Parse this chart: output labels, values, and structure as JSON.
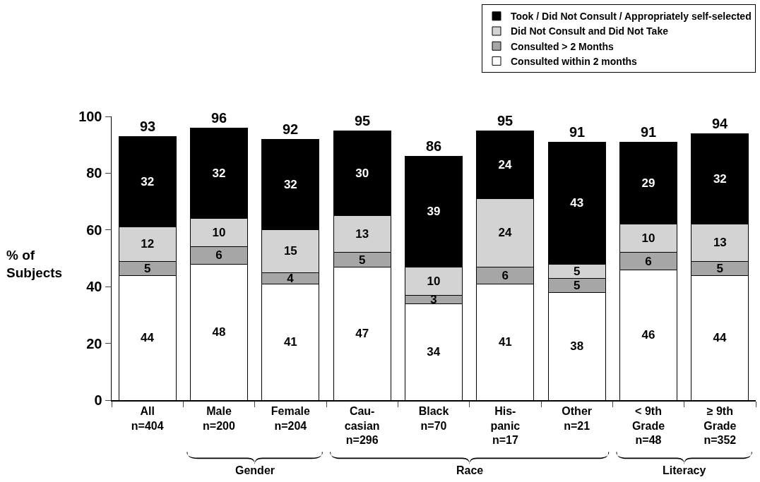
{
  "chart_data": {
    "type": "bar",
    "stacked": true,
    "ylabel": "% of\nSubjects",
    "categories": [
      "All\nn=404",
      "Male\nn=200",
      "Female\nn=204",
      "Cau-\ncasian\nn=296",
      "Black\nn=70",
      "His-\npanic\nn=17",
      "Other\nn=21",
      "< 9th\nGrade\nn=48",
      "≥ 9th\nGrade\nn=352"
    ],
    "series": [
      {
        "name": "Consulted within 2 months",
        "color": "#ffffff",
        "values": [
          44,
          48,
          41,
          47,
          34,
          41,
          38,
          46,
          44
        ]
      },
      {
        "name": "Consulted > 2 Months",
        "color": "#a6a6a6",
        "values": [
          5,
          6,
          4,
          5,
          3,
          6,
          5,
          6,
          5
        ]
      },
      {
        "name": "Did Not Consult and Did Not Take",
        "color": "#d3d3d3",
        "values": [
          12,
          10,
          15,
          13,
          10,
          24,
          5,
          10,
          13
        ]
      },
      {
        "name": "Took / Did Not Consult / Appropriately self-selected",
        "color": "#000000",
        "values": [
          32,
          32,
          32,
          30,
          39,
          24,
          43,
          29,
          32
        ]
      }
    ],
    "totals": [
      "93",
      "96",
      "92",
      "95",
      "86",
      "95",
      "91",
      "91",
      "94"
    ],
    "annotations": [
      "Gender",
      "Race",
      "Literacy"
    ],
    "ylim": [
      0,
      100
    ],
    "yticks": [
      0,
      20,
      40,
      60,
      80,
      100
    ],
    "grid": false,
    "legend": "top right",
    "data_labels": true
  }
}
